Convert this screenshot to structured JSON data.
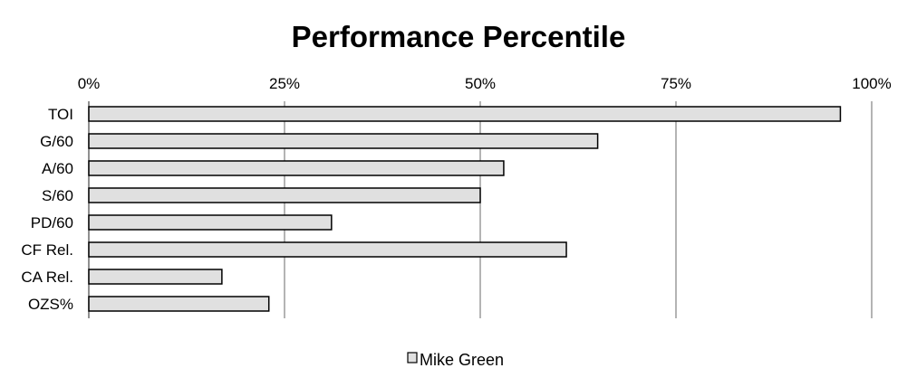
{
  "chart_data": {
    "type": "bar",
    "orientation": "horizontal",
    "title": "Performance Percentile",
    "xlabel": "",
    "ylabel": "",
    "xlim": [
      0,
      100
    ],
    "x_ticks": [
      0,
      25,
      50,
      75,
      100
    ],
    "x_tick_labels": [
      "0%",
      "25%",
      "50%",
      "75%",
      "100%"
    ],
    "x_axis_position": "top",
    "grid": "vertical",
    "categories": [
      "TOI",
      "G/60",
      "A/60",
      "S/60",
      "PD/60",
      "CF Rel.",
      "CA Rel.",
      "OZS%"
    ],
    "series": [
      {
        "name": "Mike Green",
        "values": [
          96,
          65,
          53,
          50,
          31,
          61,
          17,
          23
        ]
      }
    ],
    "legend_position": "bottom",
    "colors": {
      "bar_fill": "#e0e0e0",
      "bar_stroke": "#000000",
      "grid": "#8c8c8c"
    }
  }
}
